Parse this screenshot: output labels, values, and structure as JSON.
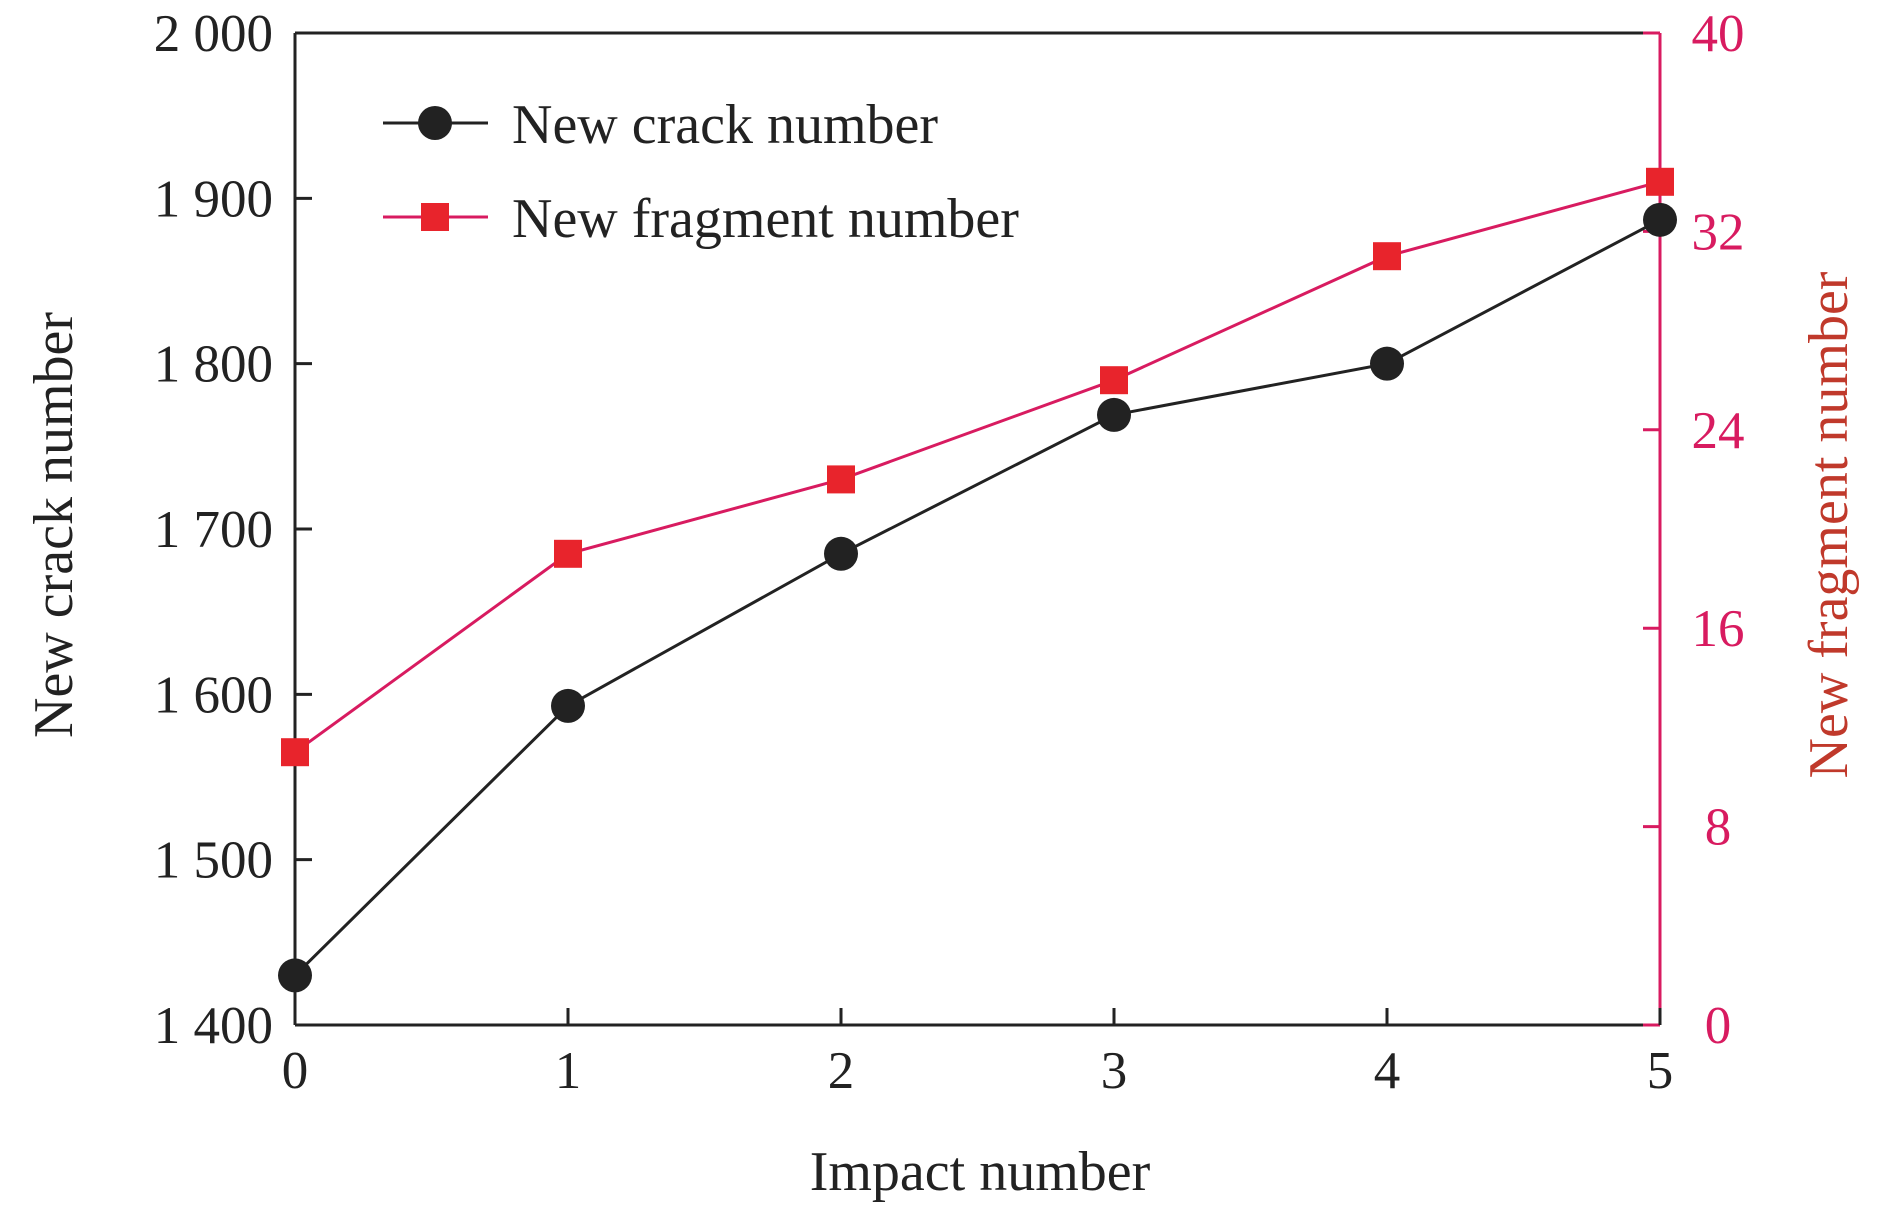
{
  "chart_data": {
    "type": "line",
    "x": [
      0,
      1,
      2,
      3,
      4,
      5
    ],
    "xlabel": "Impact number",
    "xlim": [
      0,
      5
    ],
    "x_ticks": [
      "0",
      "1",
      "2",
      "3",
      "4",
      "5"
    ],
    "y_left": {
      "label": "New crack number",
      "lim": [
        1400,
        2000
      ],
      "ticks": [
        1400,
        1500,
        1600,
        1700,
        1800,
        1900,
        2000
      ],
      "tick_labels": [
        "1 400",
        "1 500",
        "1 600",
        "1 700",
        "1 800",
        "1 900",
        "2 000"
      ]
    },
    "y_right": {
      "label": "New fragment number",
      "lim": [
        0,
        40
      ],
      "ticks": [
        0,
        8,
        16,
        24,
        32,
        40
      ],
      "tick_labels": [
        "0",
        "8",
        "16",
        "24",
        "32",
        "40"
      ]
    },
    "series": [
      {
        "name": "New crack number",
        "axis": "left",
        "marker": "circle",
        "color": "#222222",
        "values": [
          1430,
          1593,
          1685,
          1769,
          1800,
          1887
        ]
      },
      {
        "name": "New fragment number",
        "axis": "right",
        "marker": "square",
        "color": "#e8242c",
        "line_color": "#d81b60",
        "values": [
          11,
          19,
          22,
          26,
          31,
          34
        ]
      }
    ],
    "legend_position": "top-left",
    "grid": false,
    "colors": {
      "axis": "#222222",
      "right_axis": "#d81b60",
      "right_label": "#c0392b"
    }
  }
}
